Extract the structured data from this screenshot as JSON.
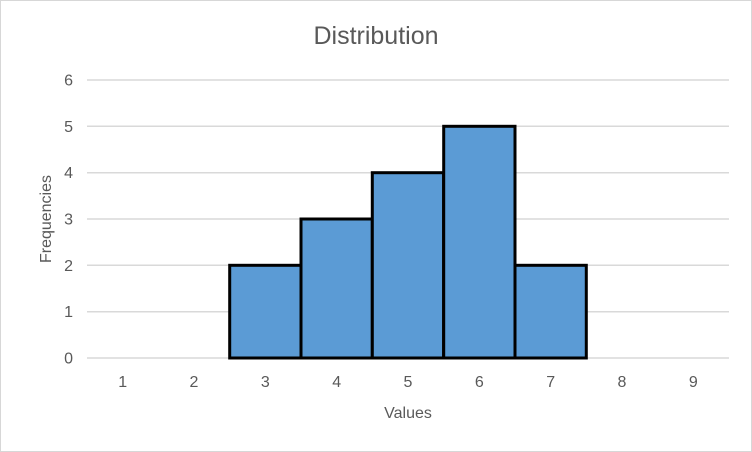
{
  "chart_data": {
    "type": "bar",
    "subtype": "histogram",
    "title": "Distribution",
    "xlabel": "Values",
    "ylabel": "Frequencies",
    "categories": [
      1,
      2,
      3,
      4,
      5,
      6,
      7,
      8,
      9
    ],
    "values": [
      0,
      0,
      2,
      3,
      4,
      5,
      2,
      0,
      0
    ],
    "ylim": [
      0,
      6
    ],
    "yticks": [
      0,
      1,
      2,
      3,
      4,
      5,
      6
    ],
    "bar_gap": 0,
    "grid": "horizontal",
    "legend": "none",
    "colors": {
      "bar_fill": "#5B9BD5",
      "bar_border": "#000000",
      "gridline": "#D9D9D9",
      "text": "#595959",
      "chart_border": "#D7D7D7",
      "background": "#FFFFFF"
    }
  }
}
